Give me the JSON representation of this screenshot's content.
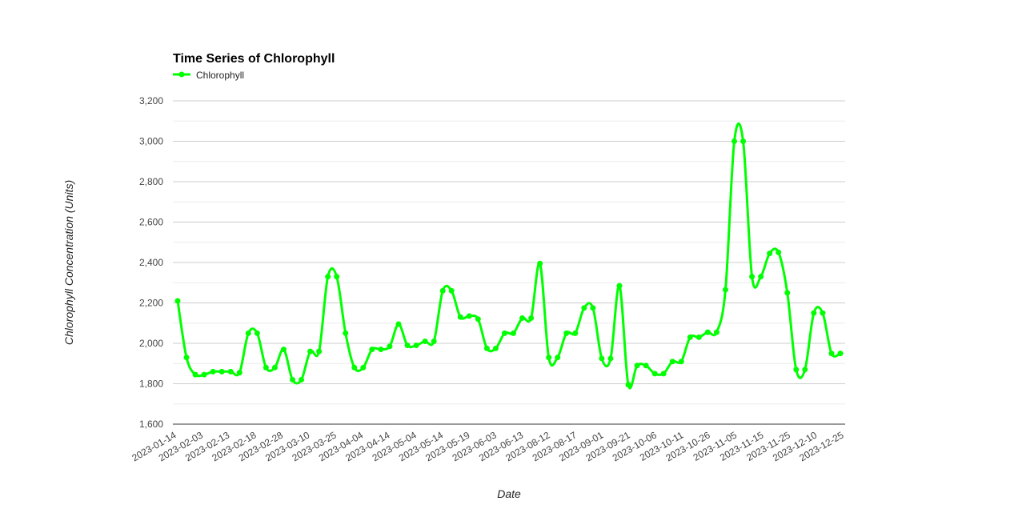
{
  "chart_data": {
    "type": "line",
    "title": "Time Series of Chlorophyll",
    "xlabel": "Date",
    "ylabel": "Chlorophyll Concentration (Units)",
    "ylim": [
      1600,
      3200
    ],
    "y_ticks": [
      "1,600",
      "1,800",
      "2,000",
      "2,200",
      "2,400",
      "2,600",
      "2,800",
      "3,000",
      "3,200"
    ],
    "x_tick_labels": [
      "2023-01-14",
      "2023-02-03",
      "2023-02-13",
      "2023-02-18",
      "2023-02-28",
      "2023-03-10",
      "2023-03-25",
      "2023-04-04",
      "2023-04-14",
      "2023-05-04",
      "2023-05-14",
      "2023-05-19",
      "2023-06-03",
      "2023-06-13",
      "2023-08-12",
      "2023-08-17",
      "2023-09-01",
      "2023-09-21",
      "2023-10-06",
      "2023-10-11",
      "2023-10-26",
      "2023-11-05",
      "2023-11-15",
      "2023-11-25",
      "2023-12-10",
      "2023-12-25"
    ],
    "legend_position": "top-left",
    "grid": true,
    "series": [
      {
        "name": "Chlorophyll",
        "color": "#00ff00",
        "values": [
          2210,
          1930,
          1845,
          1845,
          1860,
          1860,
          1860,
          1855,
          2050,
          2050,
          1880,
          1880,
          1970,
          1820,
          1820,
          1960,
          1960,
          2330,
          2330,
          2050,
          1880,
          1880,
          1970,
          1970,
          1985,
          2095,
          1990,
          1990,
          2010,
          2010,
          2260,
          2260,
          2130,
          2135,
          2120,
          1975,
          1975,
          2050,
          2050,
          2125,
          2125,
          2395,
          1930,
          1930,
          2050,
          2050,
          2175,
          2175,
          1925,
          1925,
          2285,
          1795,
          1890,
          1890,
          1850,
          1850,
          1910,
          1910,
          2030,
          2030,
          2055,
          2055,
          2265,
          3000,
          3000,
          2330,
          2330,
          2445,
          2450,
          2250,
          1870,
          1870,
          2150,
          2150,
          1950,
          1950
        ]
      }
    ]
  },
  "icons": {
    "legend_marker": "line-with-dot-icon"
  }
}
